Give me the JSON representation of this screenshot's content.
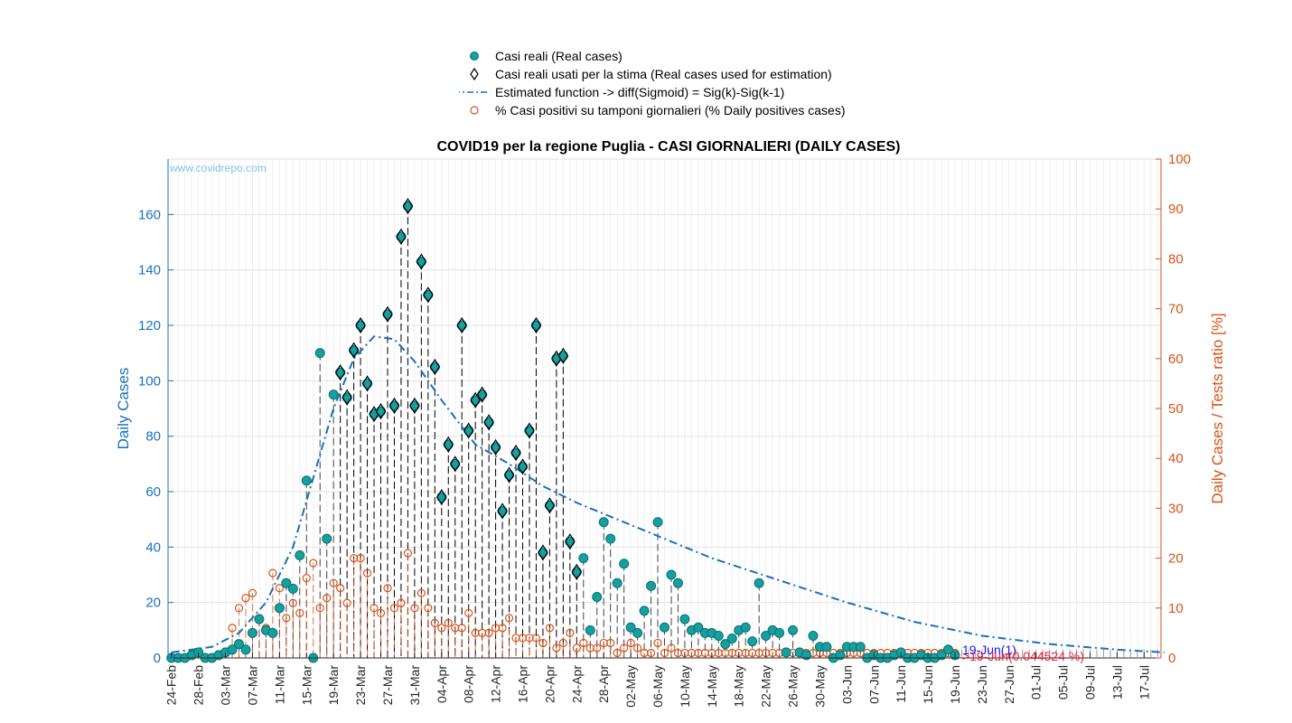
{
  "chart_data": {
    "type": "scatter",
    "title": "COVID19 per la regione Puglia - CASI GIORNALIERI (DAILY CASES)",
    "watermark": "www.covidrepo.com",
    "ylabel_left": "Daily Cases",
    "ylabel_right": "Daily Cases / Tests ratio [%]",
    "ylim_left": [
      0,
      180
    ],
    "ylim_right": [
      0,
      100
    ],
    "yticks_left": [
      "0",
      "20",
      "40",
      "60",
      "80",
      "100",
      "120",
      "140",
      "160"
    ],
    "yticks_right": [
      "0",
      "10",
      "20",
      "30",
      "40",
      "50",
      "60",
      "70",
      "80",
      "90",
      "100"
    ],
    "xticks": [
      "24-Feb",
      "28-Feb",
      "03-Mar",
      "07-Mar",
      "11-Mar",
      "15-Mar",
      "19-Mar",
      "23-Mar",
      "27-Mar",
      "31-Mar",
      "04-Apr",
      "08-Apr",
      "12-Apr",
      "16-Apr",
      "20-Apr",
      "24-Apr",
      "28-Apr",
      "02-May",
      "06-May",
      "10-May",
      "14-May",
      "18-May",
      "22-May",
      "26-May",
      "30-May",
      "03-Jun",
      "07-Jun",
      "11-Jun",
      "15-Jun",
      "19-Jun",
      "23-Jun",
      "27-Jun",
      "01-Jul",
      "05-Jul",
      "09-Jul",
      "13-Jul",
      "17-Jul"
    ],
    "x_start": "24-Feb",
    "n_days": 147,
    "grid": true,
    "legend_position": "top-center",
    "colors": {
      "real": "#14a0a0",
      "estimate": "#1a6fbf",
      "positives": "#d95319",
      "left_axis": "#1a6fbf",
      "right_axis": "#d95319",
      "annotation_blue": "#1a1aee",
      "annotation_red": "#ee1a3a"
    },
    "legend": [
      {
        "marker": "dot",
        "label": "Casi reali (Real cases)"
      },
      {
        "marker": "diamond",
        "label": "Casi reali usati per la stima (Real cases used for estimation)"
      },
      {
        "marker": "dashdot",
        "label": "Estimated function -> diff(Sigmoid) = Sig(k)-Sig(k-1)"
      },
      {
        "marker": "circle",
        "label": "% Casi positivi su tamponi giornalieri (% Daily positives cases)"
      }
    ],
    "annotations": [
      {
        "text": "19-Jun(1)",
        "day": 116,
        "value": 1,
        "color": "blue"
      },
      {
        "text": ">19-Jun(0.044524 %)",
        "day": 116,
        "value": 0.3,
        "color": "red"
      }
    ],
    "real_cases": [
      0,
      0,
      0,
      1,
      2,
      0,
      0,
      1,
      2,
      3,
      5,
      3,
      9,
      14,
      10,
      9,
      18,
      27,
      25,
      37,
      64,
      0,
      110,
      43,
      95,
      103,
      94,
      111,
      120,
      99,
      88,
      89,
      124,
      91,
      152,
      163,
      91,
      143,
      131,
      105,
      58,
      77,
      70,
      120,
      82,
      93,
      95,
      85,
      76,
      53,
      66,
      74,
      69,
      82,
      120,
      38,
      55,
      108,
      109,
      42,
      31,
      36,
      10,
      22,
      49,
      43,
      27,
      34,
      11,
      9,
      17,
      26,
      49,
      11,
      30,
      27,
      14,
      10,
      11,
      9,
      9,
      8,
      5,
      7,
      10,
      11,
      6,
      27,
      8,
      10,
      9,
      2,
      10,
      2,
      1,
      8,
      4,
      4,
      0,
      1,
      4,
      4,
      4,
      0,
      1,
      0,
      0,
      1,
      2,
      0,
      0,
      1,
      0,
      0,
      1,
      3,
      1
    ],
    "estimation_window": [
      25,
      60
    ],
    "positive_pct": [
      null,
      null,
      null,
      null,
      null,
      null,
      null,
      null,
      null,
      6,
      10,
      12,
      13,
      8,
      6,
      17,
      14,
      8,
      11,
      9,
      16,
      19,
      10,
      12,
      15,
      14,
      11,
      20,
      20,
      17,
      10,
      9,
      14,
      10,
      11,
      21,
      10,
      13,
      10,
      7,
      6,
      7,
      6,
      6,
      9,
      5,
      5,
      5,
      6,
      6,
      8,
      4,
      4,
      4,
      4,
      3,
      6,
      2,
      3,
      5,
      2,
      3,
      2,
      2,
      3,
      3,
      1,
      2,
      3,
      2,
      1,
      1,
      3,
      1,
      2,
      1,
      1,
      1,
      1,
      1,
      1,
      1,
      1,
      1,
      1,
      1,
      1,
      1,
      1,
      1,
      1,
      1,
      1,
      1,
      1,
      1,
      1,
      1,
      1,
      1,
      1,
      1,
      1,
      1,
      1,
      1,
      1,
      1,
      1,
      1,
      1,
      1,
      1,
      1,
      1,
      1,
      1
    ],
    "estimated_curve": [
      [
        0,
        2
      ],
      [
        6,
        4
      ],
      [
        10,
        9
      ],
      [
        14,
        20
      ],
      [
        18,
        40
      ],
      [
        21,
        65
      ],
      [
        24,
        90
      ],
      [
        27,
        108
      ],
      [
        30,
        116
      ],
      [
        33,
        115
      ],
      [
        36,
        107
      ],
      [
        40,
        93
      ],
      [
        45,
        77
      ],
      [
        50,
        70
      ],
      [
        55,
        62
      ],
      [
        60,
        56
      ],
      [
        65,
        51
      ],
      [
        70,
        46
      ],
      [
        75,
        41
      ],
      [
        80,
        36
      ],
      [
        90,
        28
      ],
      [
        100,
        20
      ],
      [
        110,
        13
      ],
      [
        120,
        8
      ],
      [
        130,
        5
      ],
      [
        140,
        3
      ],
      [
        147,
        2
      ]
    ]
  }
}
